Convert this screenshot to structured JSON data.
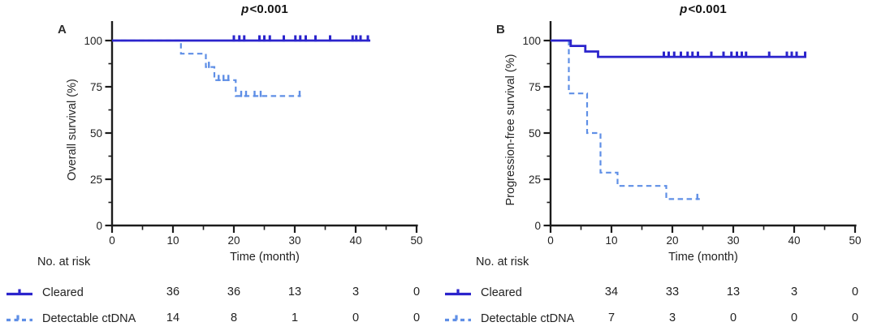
{
  "colors": {
    "cleared": "#2b24cc",
    "detectable": "#5f8fe6",
    "axis": "#1c1c1c",
    "text": "#222222",
    "background": "#ffffff"
  },
  "chart_data": [
    {
      "type": "line",
      "subtype": "kaplan-meier-step",
      "panel_label": "A",
      "title_p": "p",
      "title_rest": "<0.001",
      "title_full": "p<0.001",
      "xlabel": "Time (month)",
      "ylabel": "Overall survival (%)",
      "xlim": [
        0,
        50
      ],
      "ylim": [
        0,
        100
      ],
      "xticks": [
        0,
        10,
        20,
        30,
        40,
        50
      ],
      "yticks": [
        0,
        25,
        50,
        75,
        100
      ],
      "grid": false,
      "legend_position": "bottom-left",
      "series": [
        {
          "name": "Cleared",
          "style": "solid",
          "color_key": "cleared",
          "points": [
            [
              0,
              100
            ],
            [
              42.4,
              100
            ]
          ],
          "censor_marks": [
            [
              20,
              100
            ],
            [
              20.9,
              100
            ],
            [
              21.7,
              100
            ],
            [
              24.2,
              100
            ],
            [
              25,
              100
            ],
            [
              25.9,
              100
            ],
            [
              28.2,
              100
            ],
            [
              30.1,
              100
            ],
            [
              30.9,
              100
            ],
            [
              31.8,
              100
            ],
            [
              33.4,
              100
            ],
            [
              35.8,
              100
            ],
            [
              39.5,
              100
            ],
            [
              40.1,
              100
            ],
            [
              40.8,
              100
            ],
            [
              42,
              100
            ]
          ]
        },
        {
          "name": "Detectable ctDNA",
          "style": "dashed",
          "color_key": "detectable",
          "points": [
            [
              0,
              100
            ],
            [
              11.3,
              100
            ],
            [
              11.3,
              92.9
            ],
            [
              15.4,
              92.9
            ],
            [
              15.4,
              85.7
            ],
            [
              16.8,
              85.7
            ],
            [
              16.8,
              78.6
            ],
            [
              20.3,
              78.6
            ],
            [
              20.3,
              70
            ],
            [
              31,
              70
            ]
          ],
          "censor_marks": [
            [
              15.9,
              85.7
            ],
            [
              17.5,
              78.6
            ],
            [
              18.3,
              78.6
            ],
            [
              19.1,
              78.6
            ],
            [
              21.2,
              70
            ],
            [
              22,
              70
            ],
            [
              23.4,
              70
            ],
            [
              24.4,
              70
            ],
            [
              30.8,
              70
            ]
          ]
        }
      ],
      "risk_table": {
        "header": "No. at risk",
        "time_points": [
          10,
          20,
          30,
          40,
          50
        ],
        "rows": [
          {
            "label": "Cleared",
            "style": "solid",
            "values": [
              36,
              36,
              13,
              3,
              0
            ]
          },
          {
            "label": "Detectable ctDNA",
            "style": "dashed",
            "values": [
              14,
              8,
              1,
              0,
              0
            ]
          }
        ]
      }
    },
    {
      "type": "line",
      "subtype": "kaplan-meier-step",
      "panel_label": "B",
      "title_p": "p",
      "title_rest": "<0.001",
      "title_full": "p<0.001",
      "xlabel": "Time (month)",
      "ylabel": "Progression-free survival (%)",
      "xlim": [
        0,
        50
      ],
      "ylim": [
        0,
        100
      ],
      "xticks": [
        0,
        10,
        20,
        30,
        40,
        50
      ],
      "yticks": [
        0,
        25,
        50,
        75,
        100
      ],
      "grid": false,
      "legend_position": "bottom-left",
      "series": [
        {
          "name": "Cleared",
          "style": "solid",
          "color_key": "cleared",
          "points": [
            [
              0,
              100
            ],
            [
              3.3,
              100
            ],
            [
              3.3,
              97.1
            ],
            [
              5.7,
              97.1
            ],
            [
              5.7,
              94.1
            ],
            [
              7.8,
              94.1
            ],
            [
              7.8,
              91.2
            ],
            [
              42,
              91.2
            ]
          ],
          "censor_marks": [
            [
              18.6,
              91.2
            ],
            [
              19.4,
              91.2
            ],
            [
              20.3,
              91.2
            ],
            [
              21.4,
              91.2
            ],
            [
              22.5,
              91.2
            ],
            [
              23.3,
              91.2
            ],
            [
              24.2,
              91.2
            ],
            [
              26.4,
              91.2
            ],
            [
              28.4,
              91.2
            ],
            [
              29.7,
              91.2
            ],
            [
              30.6,
              91.2
            ],
            [
              31.4,
              91.2
            ],
            [
              32.1,
              91.2
            ],
            [
              35.9,
              91.2
            ],
            [
              38.8,
              91.2
            ],
            [
              39.6,
              91.2
            ],
            [
              40.4,
              91.2
            ],
            [
              41.8,
              91.2
            ]
          ]
        },
        {
          "name": "Detectable ctDNA",
          "style": "dashed",
          "color_key": "detectable",
          "points": [
            [
              0,
              100
            ],
            [
              3,
              100
            ],
            [
              3,
              71.4
            ],
            [
              6,
              71.4
            ],
            [
              6,
              50
            ],
            [
              8.2,
              50
            ],
            [
              8.2,
              28.6
            ],
            [
              11,
              28.6
            ],
            [
              11,
              21.4
            ],
            [
              19,
              21.4
            ],
            [
              19,
              14.3
            ],
            [
              24.5,
              14.3
            ]
          ],
          "censor_marks": [
            [
              24.1,
              14.3
            ]
          ]
        }
      ],
      "risk_table": {
        "header": "No. at risk",
        "time_points": [
          10,
          20,
          30,
          40,
          50
        ],
        "rows": [
          {
            "label": "Cleared",
            "style": "solid",
            "values": [
              34,
              33,
              13,
              3,
              0
            ]
          },
          {
            "label": "Detectable ctDNA",
            "style": "dashed",
            "values": [
              7,
              3,
              0,
              0,
              0
            ]
          }
        ]
      }
    }
  ]
}
